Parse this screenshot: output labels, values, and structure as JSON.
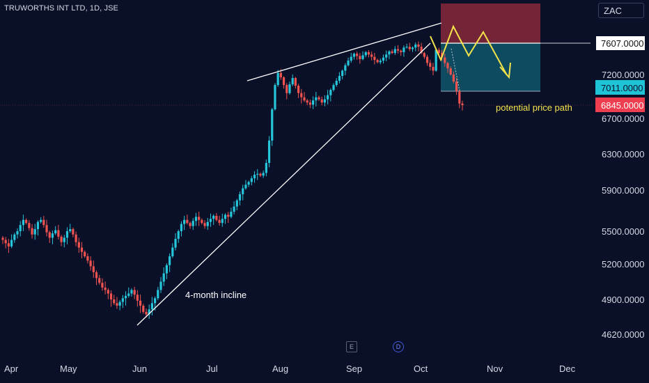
{
  "header": {
    "symbol": "TRUWORTHS INT LTD, 1D, JSE",
    "currency": "ZAC"
  },
  "badges": {
    "earnings": "E",
    "dividend": "D"
  },
  "colors": {
    "background": "#0b1029",
    "up": "#26c6da",
    "down": "#ef5350",
    "trendline": "#ffffff",
    "path": "#f4e44a",
    "stop_zone": "#7a2638",
    "target_zone": "#0f4f63"
  },
  "chart_data": {
    "type": "candlestick",
    "title": "TRUWORTHS INT LTD, 1D, JSE",
    "currency": "ZAC",
    "x_labels": [
      "Apr",
      "May",
      "Jun",
      "Jul",
      "Aug",
      "Sep",
      "Oct",
      "Nov",
      "Dec"
    ],
    "y_ticks": [
      "7200.0000",
      "6700.0000",
      "6300.0000",
      "5900.0000",
      "5500.0000",
      "5200.0000",
      "4900.0000",
      "4620.0000"
    ],
    "price_labels": {
      "stop": "7607.0000",
      "entry": "7011.0000",
      "last": "6845.0000"
    },
    "annotations": {
      "incline": "4-month incline",
      "path": "potential price path"
    },
    "grid": false,
    "closes": [
      5420,
      5390,
      5360,
      5420,
      5470,
      5500,
      5560,
      5610,
      5580,
      5530,
      5470,
      5520,
      5590,
      5610,
      5560,
      5490,
      5440,
      5480,
      5510,
      5450,
      5400,
      5440,
      5500,
      5520,
      5470,
      5400,
      5350,
      5310,
      5270,
      5230,
      5180,
      5130,
      5080,
      5040,
      5000,
      4980,
      4950,
      4900,
      4870,
      4850,
      4880,
      4910,
      4930,
      4950,
      4980,
      4940,
      4890,
      4850,
      4800,
      4780,
      4820,
      4870,
      4910,
      4980,
      5050,
      5120,
      5190,
      5270,
      5350,
      5430,
      5500,
      5570,
      5610,
      5580,
      5550,
      5600,
      5640,
      5610,
      5580,
      5550,
      5590,
      5620,
      5650,
      5610,
      5580,
      5620,
      5660,
      5640,
      5690,
      5740,
      5800,
      5860,
      5920,
      5960,
      5990,
      6030,
      6070,
      6080,
      6060,
      6090,
      6200,
      6450,
      6800,
      7050,
      7220,
      7160,
      7050,
      6960,
      7060,
      7150,
      7040,
      6960,
      6920,
      6890,
      6870,
      6850,
      6890,
      6920,
      6900,
      6870,
      6900,
      6940,
      6990,
      7050,
      7110,
      7180,
      7250,
      7320,
      7380,
      7430,
      7470,
      7440,
      7400,
      7450,
      7490,
      7460,
      7430,
      7390,
      7360,
      7380,
      7420,
      7460,
      7500,
      7480,
      7530,
      7510,
      7490,
      7550,
      7560,
      7530,
      7550,
      7590,
      7560,
      7480,
      7430,
      7350,
      7300,
      7250,
      7520,
      7480,
      7420,
      7350,
      7280,
      7200,
      7100,
      6980,
      6860,
      6845
    ]
  }
}
